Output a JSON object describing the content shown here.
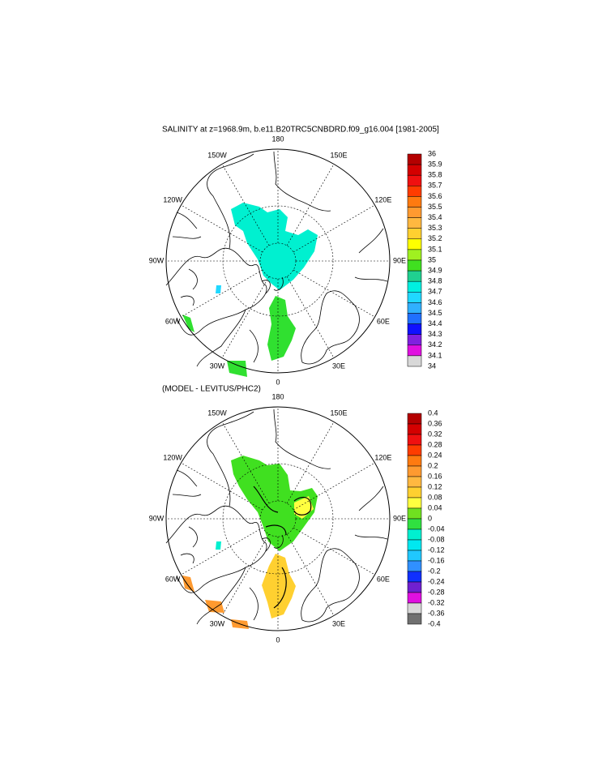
{
  "panels": [
    {
      "title": "SALINITY at z=1968.9m, b.e11.B20TRC5CNBDRD.f09_g16.004 [1981-2005]",
      "lon_labels": [
        "180",
        "150E",
        "120E",
        "90E",
        "60E",
        "30E",
        "0",
        "30W",
        "60W",
        "90W",
        "120W",
        "150W"
      ],
      "colorbar": {
        "levels": [
          36,
          35.9,
          35.8,
          35.7,
          35.6,
          35.5,
          35.4,
          35.3,
          35.2,
          35.1,
          35,
          34.9,
          34.8,
          34.7,
          34.6,
          34.5,
          34.4,
          34.3,
          34.2,
          34.1,
          34
        ],
        "colors": [
          "#b40000",
          "#d40000",
          "#f01010",
          "#ff3c00",
          "#ff7a10",
          "#ff9a30",
          "#ffb840",
          "#ffd030",
          "#ffff00",
          "#a0f020",
          "#40e020",
          "#20d090",
          "#00f0e0",
          "#20d8ff",
          "#30b0ff",
          "#2070ff",
          "#1010ff",
          "#8020e0",
          "#e010e0",
          "#d8d8d8"
        ]
      }
    },
    {
      "title": "(MODEL - LEVITUS/PHC2)",
      "lon_labels": [
        "180",
        "150E",
        "120E",
        "90E",
        "60E",
        "30E",
        "0",
        "30W",
        "60W",
        "90W",
        "120W",
        "150W"
      ],
      "colorbar": {
        "levels": [
          0.4,
          0.36,
          0.32,
          0.28,
          0.24,
          0.2,
          0.16,
          0.12,
          0.08,
          0.04,
          0,
          -0.04,
          -0.08,
          -0.12,
          -0.16,
          -0.2,
          -0.24,
          -0.28,
          -0.32,
          -0.36,
          -0.4
        ],
        "colors": [
          "#b40000",
          "#d40000",
          "#f01010",
          "#ff3c00",
          "#ff7a10",
          "#ff9a30",
          "#ffb840",
          "#ffd030",
          "#ffff40",
          "#70e020",
          "#30e040",
          "#00f0d0",
          "#00e8f0",
          "#20c8ff",
          "#3090ff",
          "#1030ff",
          "#7020d0",
          "#e010e0",
          "#d8d8d8",
          "#707070"
        ]
      }
    }
  ]
}
